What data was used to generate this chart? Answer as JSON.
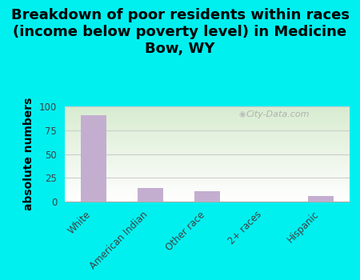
{
  "title": "Breakdown of poor residents within races\n(income below poverty level) in Medicine\nBow, WY",
  "categories": [
    "White",
    "American Indian",
    "Other race",
    "2+ races",
    "Hispanic"
  ],
  "values": [
    91,
    14,
    11,
    0,
    6
  ],
  "bar_color": "#c4aed0",
  "ylabel": "absolute numbers",
  "ylim": [
    0,
    100
  ],
  "yticks": [
    0,
    25,
    50,
    75,
    100
  ],
  "background_color": "#00f0f0",
  "watermark": "City-Data.com",
  "title_fontsize": 13,
  "ylabel_fontsize": 10,
  "tick_fontsize": 8.5,
  "bar_width": 0.45
}
